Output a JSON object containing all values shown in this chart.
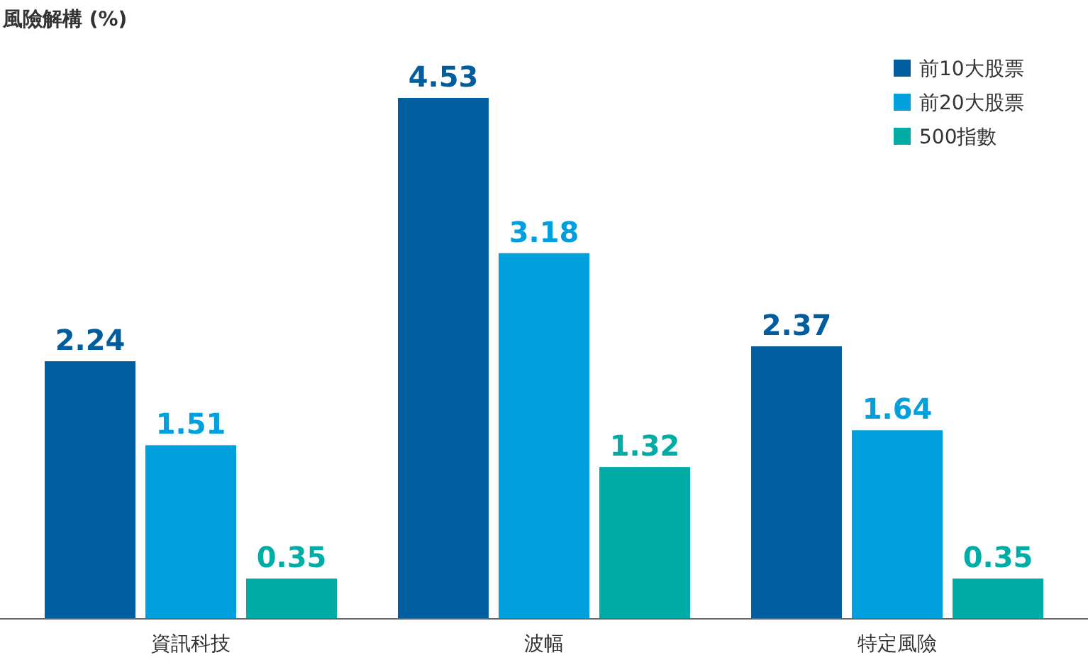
{
  "chart_data": {
    "type": "bar",
    "title": "風險解構 (%)",
    "categories": [
      "資訊科技",
      "波幅",
      "特定風險"
    ],
    "series": [
      {
        "name": "前10大股票",
        "color": "#005e9e",
        "values": [
          2.24,
          4.53,
          2.37
        ]
      },
      {
        "name": "前20大股票",
        "color": "#009fde",
        "values": [
          1.51,
          3.18,
          1.64
        ]
      },
      {
        "name": "500指數",
        "color": "#00aca6",
        "values": [
          0.35,
          1.32,
          0.35
        ]
      }
    ],
    "data_labels": true,
    "legend": "top right"
  }
}
